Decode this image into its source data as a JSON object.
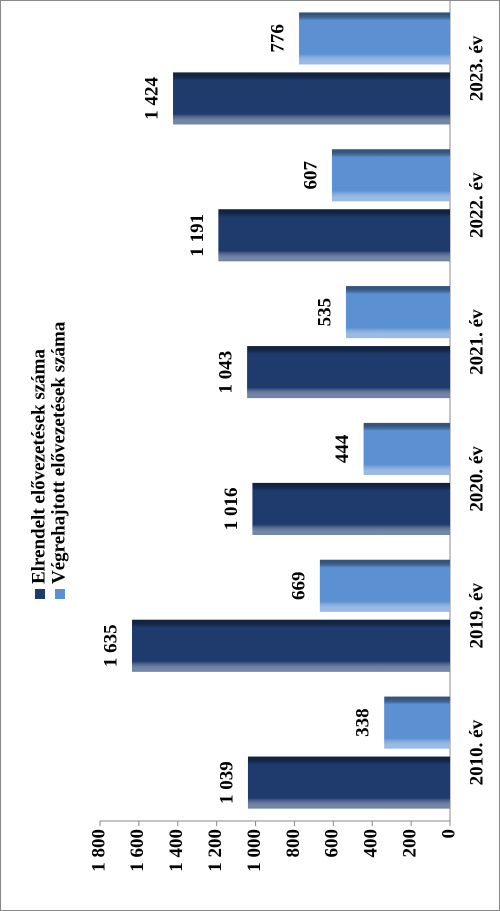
{
  "chart_data": {
    "type": "bar",
    "categories": [
      "2010. év",
      "2019. év",
      "2020. év",
      "2021. év",
      "2022. év",
      "2023. év"
    ],
    "series": [
      {
        "name": "Elrendelt elővezetések száma",
        "color": "#1f3b6e",
        "values": [
          1039,
          1635,
          1016,
          1043,
          1191,
          1424
        ],
        "value_labels": [
          "1 039",
          "1 635",
          "1 016",
          "1 043",
          "1 191",
          "1 424"
        ]
      },
      {
        "name": "Végrehajtott elővezetések száma",
        "color": "#5b90d2",
        "values": [
          338,
          669,
          444,
          535,
          607,
          776
        ]
      }
    ],
    "ylim": [
      0,
      1800
    ],
    "yticks": [
      0,
      200,
      400,
      600,
      800,
      {
        "value": 1000,
        "label": "1 000"
      },
      {
        "value": 1200,
        "label": "1 200"
      },
      {
        "value": 1400,
        "label": "1 400"
      },
      {
        "value": 1600,
        "label": "1 600"
      },
      {
        "value": 1800,
        "label": "1 800"
      }
    ]
  }
}
